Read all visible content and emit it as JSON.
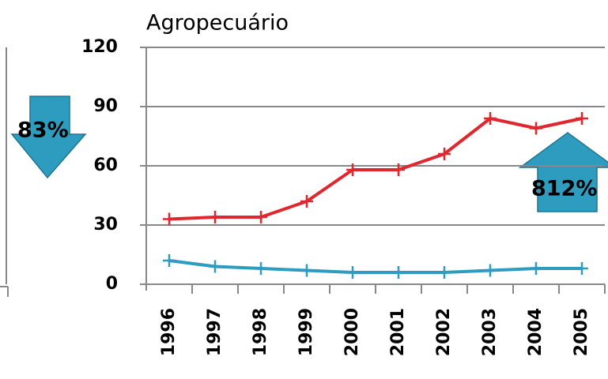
{
  "chart_data": {
    "type": "line",
    "title": "Agropecuário",
    "categories": [
      "1996",
      "1997",
      "1998",
      "1999",
      "2000",
      "2001",
      "2002",
      "2003",
      "2004",
      "2005"
    ],
    "series": [
      {
        "color": "#e0262e",
        "values": [
          33,
          34,
          34,
          42,
          58,
          58,
          66,
          84,
          79,
          84
        ]
      },
      {
        "color": "#2e9cbf",
        "values": [
          12,
          9,
          8,
          7,
          6,
          6,
          6,
          7,
          8,
          8
        ]
      }
    ],
    "ylim": [
      0,
      120
    ],
    "yticks": [
      0,
      30,
      60,
      90,
      120
    ],
    "grid": true,
    "annotations": [
      "83%",
      "812%"
    ]
  }
}
